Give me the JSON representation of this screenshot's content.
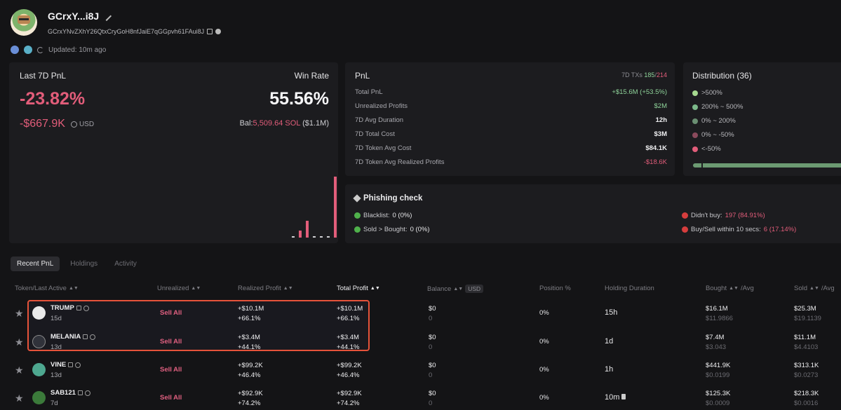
{
  "header": {
    "wallet_name": "GCrxY...i8J",
    "wallet_address": "GCrxYNvZXhY26QtxCryGoH8nfJaiE7qGGpvh61FAui8J",
    "updated": "Updated: 10m ago"
  },
  "pnl7": {
    "label": "Last 7D PnL",
    "percent": "-23.82%",
    "usd_value": "-$667.9K",
    "usd_unit": "USD",
    "win_label": "Win Rate",
    "win_rate": "55.56%",
    "bal_prefix": "Bal:",
    "bal_sol": "5,509.64 SOL",
    "bal_usd": "($1.1M)",
    "histogram": [
      {
        "h": 0.02,
        "color": "#cfcfd3"
      },
      {
        "h": 0.1,
        "color": "#e25d7a"
      },
      {
        "h": 0.25,
        "color": "#e25d7a"
      },
      {
        "h": 0.02,
        "color": "#cfcfd3"
      },
      {
        "h": 0.02,
        "color": "#cfcfd3"
      },
      {
        "h": 0.02,
        "color": "#cfcfd3"
      },
      {
        "h": 0.92,
        "color": "#e25d7a"
      }
    ]
  },
  "pnl": {
    "title": "PnL",
    "txs_label": "7D TXs",
    "txs_wins": "185",
    "txs_total": "214",
    "rows": [
      {
        "k": "Total PnL",
        "v": "+$15.6M (+53.5%)",
        "tone": "g"
      },
      {
        "k": "Unrealized Profits",
        "v": "$2M",
        "tone": "g"
      },
      {
        "k": "7D Avg Duration",
        "v": "12h",
        "tone": ""
      },
      {
        "k": "7D Total Cost",
        "v": "$3M",
        "tone": ""
      },
      {
        "k": "7D Token Avg Cost",
        "v": "$84.1K",
        "tone": ""
      },
      {
        "k": "7D Token Avg Realized Profits",
        "v": "-$18.6K",
        "tone": "r"
      }
    ]
  },
  "distribution": {
    "title": "Distribution (36)",
    "rows": [
      {
        "label": ">500%",
        "color": "#a6d98f"
      },
      {
        "label": "200% ~ 500%",
        "color": "#7cb98a"
      },
      {
        "label": "0% ~ 200%",
        "color": "#6a8f72"
      },
      {
        "label": "0% ~ -50%",
        "color": "#8a4a5c"
      },
      {
        "label": "<-50%",
        "color": "#e25d7a"
      }
    ]
  },
  "phishing": {
    "title": "Phishing check",
    "blacklist_label": "Blacklist:",
    "blacklist_val": "0 (0%)",
    "sold_label": "Sold > Bought:",
    "sold_val": "0 (0%)",
    "didnt_buy_label": "Didn't buy:",
    "didnt_buy_val": "197 (84.91%)",
    "fast_label": "Buy/Sell within 10 secs:",
    "fast_val": "6 (17.14%)"
  },
  "tabs": [
    "Recent PnL",
    "Holdings",
    "Activity"
  ],
  "table": {
    "headers": {
      "token": "Token/Last Active",
      "unrealized": "Unrealized",
      "realized": "Realized Profit",
      "total": "Total Profit",
      "balance": "Balance",
      "usd": "USD",
      "position": "Position %",
      "holding": "Holding Duration",
      "bought": "Bought",
      "bought_suffix": "/Avg",
      "sold": "Sold",
      "sold_suffix": "/Avg"
    },
    "rows": [
      {
        "name": "TRUMP",
        "age": "15d",
        "sell": "Sell All",
        "realized": "+$10.1M",
        "realized_pct": "+66.1%",
        "total": "+$10.1M",
        "total_pct": "+66.1%",
        "balance": "$0",
        "balance_sub": "0",
        "position": "0%",
        "holding": "15h",
        "bought": "$16.1M",
        "bought_avg": "$11.9866",
        "sold": "$25.3M",
        "sold_avg": "$19.1139"
      },
      {
        "name": "MELANIA",
        "age": "13d",
        "sell": "Sell All",
        "realized": "+$3.4M",
        "realized_pct": "+44.1%",
        "total": "+$3.4M",
        "total_pct": "+44.1%",
        "balance": "$0",
        "balance_sub": "0",
        "position": "0%",
        "holding": "1d",
        "bought": "$7.4M",
        "bought_avg": "$3.043",
        "sold": "$11.1M",
        "sold_avg": "$4.4103"
      },
      {
        "name": "VINE",
        "age": "13d",
        "sell": "Sell All",
        "realized": "+$99.2K",
        "realized_pct": "+46.4%",
        "total": "+$99.2K",
        "total_pct": "+46.4%",
        "balance": "$0",
        "balance_sub": "0",
        "position": "0%",
        "holding": "1h",
        "bought": "$441.9K",
        "bought_avg": "$0.0199",
        "sold": "$313.1K",
        "sold_avg": "$0.0273"
      },
      {
        "name": "SAB121",
        "age": "7d",
        "sell": "Sell All",
        "realized": "+$92.9K",
        "realized_pct": "+74.2%",
        "total": "+$92.9K",
        "total_pct": "+74.2%",
        "balance": "$0",
        "balance_sub": "0",
        "position": "0%",
        "holding": "10m",
        "bought": "$125.3K",
        "bought_avg": "$0.0009",
        "sold": "$218.3K",
        "sold_avg": "$0.0016"
      }
    ]
  }
}
